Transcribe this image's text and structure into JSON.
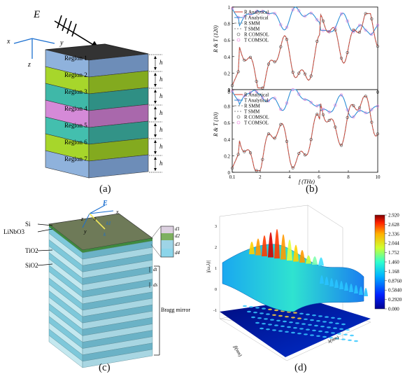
{
  "panel_a": {
    "caption": "(a)",
    "field_label": "E",
    "axes": {
      "x": "x",
      "y": "y",
      "z": "z"
    },
    "regions": [
      "Region 1",
      "Region 2",
      "Region 3",
      "Region 4",
      "Region 5",
      "Region 6",
      "Region 7"
    ],
    "thickness_label": "h"
  },
  "panel_b": {
    "caption": "(b)",
    "top": {
      "ylabel": "R & T (120)",
      "yticks": [
        "0",
        "0.2",
        "0.4",
        "0.6",
        "0.8",
        "1"
      ],
      "legend": [
        "R Analytical",
        "T Analytical",
        "R SMM",
        "T SMM",
        "R COMSOL",
        "T COMSOL"
      ]
    },
    "bottom": {
      "ylabel": "R & T (10)",
      "yticks": [
        "0",
        "0.2",
        "0.4",
        "0.6",
        "0.8",
        "1"
      ],
      "xticks": [
        "0.1",
        "2",
        "4",
        "6",
        "8",
        "10"
      ],
      "xlabel": "f (THz)",
      "legend": [
        "R Analytical",
        "T Analytical",
        "R SMM",
        "T SMM",
        "R COMSOL",
        "T COMSOL"
      ]
    },
    "top_axis_ticks": [
      "0",
      "0"
    ]
  },
  "panel_c": {
    "caption": "(c)",
    "layers": [
      "Si",
      "LiNbO3",
      "TiO2",
      "SiO2"
    ],
    "field_label": "E",
    "axis_labels": {
      "x": "x",
      "y": "y",
      "z": "z",
      "theta": "θ",
      "k1": "k1",
      "k": "k"
    },
    "thicknesses": [
      "d1",
      "d2",
      "d3",
      "d4"
    ],
    "period_labels": [
      "dt",
      "ds"
    ],
    "mirror_label": "Bragg mirror"
  },
  "panel_d": {
    "caption": "(d)",
    "zlabel": "|(ω,λ)|",
    "colorbar_ticks": [
      "2.920",
      "2.628",
      "2.336",
      "2.044",
      "1.752",
      "1.460",
      "1.168",
      "0.8760",
      "0.5840",
      "0.2920",
      "0.000"
    ],
    "zticks": [
      "3",
      "2",
      "1",
      "0",
      "-1"
    ],
    "xlabel": "λ(nm)",
    "ylabel": "β(nm)"
  },
  "colors": {
    "cyan": "#2d8fd6",
    "red": "#d23a2a",
    "pink": "#e86bd6",
    "grey": "#888888",
    "green": "#b6e21f"
  }
}
